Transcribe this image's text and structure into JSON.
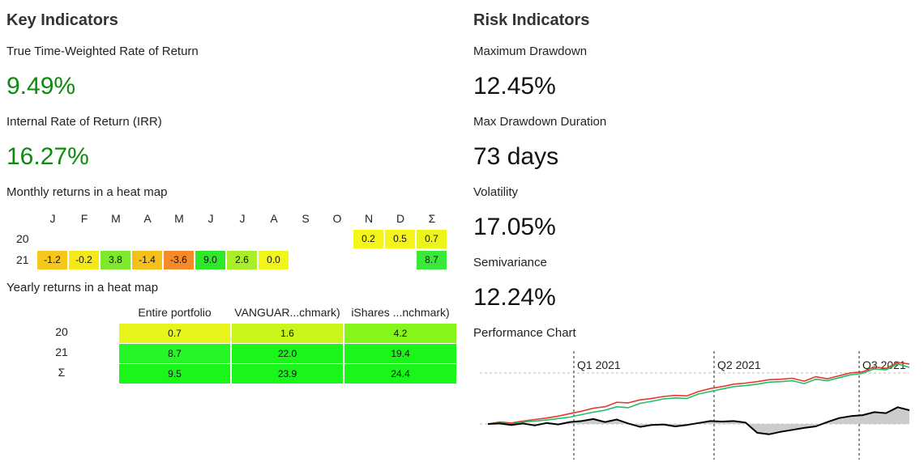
{
  "key": {
    "title": "Key Indicators",
    "twrr_label": "True Time-Weighted Rate of Return",
    "twrr_value": "9.49%",
    "irr_label": "Internal Rate of Return (IRR)",
    "irr_value": "16.27%",
    "monthly_label": "Monthly returns in a heat map",
    "yearly_label": "Yearly returns in a heat map"
  },
  "monthly": {
    "headers": [
      "J",
      "F",
      "M",
      "A",
      "M",
      "J",
      "J",
      "A",
      "S",
      "O",
      "N",
      "D",
      "Σ"
    ],
    "rows": [
      {
        "year": "20",
        "cells": [
          "",
          "",
          "",
          "",
          "",
          "",
          "",
          "",
          "",
          "",
          "0.2",
          "0.5",
          "0.7"
        ]
      },
      {
        "year": "21",
        "cells": [
          "-1.2",
          "-0.2",
          "3.8",
          "-1.4",
          "-3.6",
          "9.0",
          "2.6",
          "0.0",
          "",
          "",
          "",
          "",
          "8.7"
        ]
      }
    ],
    "colors": [
      [
        "",
        "",
        "",
        "",
        "",
        "",
        "",
        "",
        "",
        "",
        "#f5f51a",
        "#f5f51a",
        "#ecf51a"
      ],
      [
        "#f5c71a",
        "#f5e91a",
        "#7ee82a",
        "#f5c01a",
        "#f58a2a",
        "#2fe82a",
        "#a8ef2a",
        "#f2f51a",
        "",
        "",
        "",
        "",
        "#3ae83a"
      ]
    ]
  },
  "yearly": {
    "headers": [
      "Entire portfolio",
      "VANGUAR...chmark)",
      "iShares ...nchmark)"
    ],
    "rows": [
      {
        "year": "20",
        "cells": [
          "0.7",
          "1.6",
          "4.2"
        ]
      },
      {
        "year": "21",
        "cells": [
          "8.7",
          "22.0",
          "19.4"
        ]
      },
      {
        "year": "Σ",
        "cells": [
          "9.5",
          "23.9",
          "24.4"
        ]
      }
    ],
    "colors": [
      [
        "#e8f51a",
        "#c8f51a",
        "#86f51a"
      ],
      [
        "#26f526",
        "#1af51a",
        "#1af51a"
      ],
      [
        "#1af51a",
        "#1af51a",
        "#1af51a"
      ]
    ]
  },
  "risk": {
    "title": "Risk Indicators",
    "mdd_label": "Maximum Drawdown",
    "mdd_value": "12.45%",
    "mddd_label": "Max Drawdown Duration",
    "mddd_value": "73 days",
    "vol_label": "Volatility",
    "vol_value": "17.05%",
    "semi_label": "Semivariance",
    "semi_value": "12.24%",
    "perf_label": "Performance Chart"
  },
  "chart_data": {
    "type": "line",
    "x_labels": [
      "Q1 2021",
      "Q2 2021",
      "Q3 2021"
    ],
    "series_colors": {
      "red": "#e8372b",
      "green": "#1fbf6a",
      "black": "#000000",
      "fill": "#cccccc"
    },
    "series": [
      {
        "key": "red",
        "values": [
          0.0,
          0.4,
          0.2,
          0.6,
          0.9,
          1.2,
          1.6,
          2.1,
          2.6,
          3.2,
          3.5,
          4.4,
          4.3,
          4.9,
          5.2,
          5.6,
          5.8,
          5.7,
          6.6,
          7.2,
          7.6,
          8.1,
          8.3,
          8.6,
          9.0,
          9.1,
          9.3,
          8.7,
          9.6,
          9.2,
          9.8,
          10.4,
          10.6,
          11.6,
          11.3,
          12.5,
          12.2
        ]
      },
      {
        "key": "green",
        "values": [
          0.0,
          0.2,
          0.0,
          0.4,
          0.6,
          0.8,
          1.1,
          1.4,
          1.9,
          2.4,
          2.8,
          3.5,
          3.3,
          4.2,
          4.6,
          5.1,
          5.3,
          5.2,
          6.1,
          6.6,
          7.1,
          7.6,
          7.8,
          8.1,
          8.5,
          8.6,
          8.8,
          8.2,
          9.1,
          8.8,
          9.4,
          10.0,
          10.3,
          11.2,
          11.0,
          12.2,
          11.5
        ]
      },
      {
        "key": "black",
        "values": [
          0.0,
          0.1,
          -0.2,
          0.1,
          -0.3,
          0.2,
          -0.1,
          0.4,
          0.6,
          1.0,
          0.4,
          0.9,
          0.1,
          -0.6,
          -0.2,
          -0.1,
          -0.5,
          -0.2,
          0.2,
          0.6,
          0.5,
          0.6,
          0.3,
          -1.8,
          -2.1,
          -1.6,
          -1.2,
          -0.8,
          -0.5,
          0.4,
          1.2,
          1.6,
          1.8,
          2.4,
          2.2,
          3.4,
          2.8
        ]
      }
    ]
  }
}
